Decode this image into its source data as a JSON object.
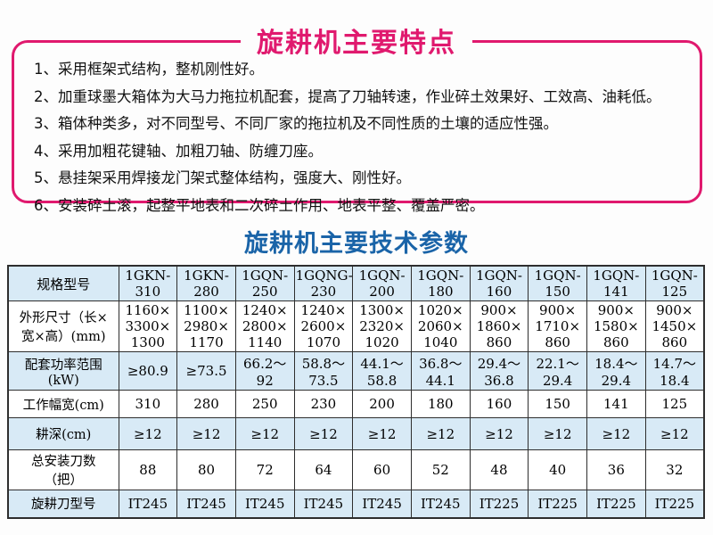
{
  "colors": {
    "accent_pink": "#e0196e",
    "accent_blue": "#1a64a8",
    "cell_blue": "#d8eaf6",
    "table_border": "#2e2e2e"
  },
  "features": {
    "title": "旋耕机主要特点",
    "items": [
      "1、采用框架式结构，整机刚性好。",
      "2、加重球墨大箱体为大马力拖拉机配套，提高了刀轴转速，作业碎土效果好、工效高、油耗低。",
      "3、箱体种类多，对不同型号、不同厂家的拖拉机及不同性质的土壤的适应性强。",
      "4、采用加粗花键轴、加粗刀轴、防缠刀座。",
      "5、悬挂架采用焊接龙门架式整体结构，强度大、刚性好。",
      "6、安装碎土滚，起整平地表和二次碎土作用、地表平整、覆盖严密。"
    ]
  },
  "specs": {
    "title": "旋耕机主要技术参数",
    "table": {
      "header": [
        "规格型号",
        "1GKN-310",
        "1GKN-280",
        "1GQN-250",
        "1GQNG-230",
        "1GQN-200",
        "1GQN-180",
        "1GQN-160",
        "1GQN-150",
        "1GQN-141",
        "1GQN-125"
      ],
      "rows": [
        {
          "label": [
            "外形尺寸（长×",
            "宽×高）(mm)"
          ],
          "values": [
            [
              "1160×",
              "3300×",
              "1300"
            ],
            [
              "1100×",
              "2980×",
              "1170"
            ],
            [
              "1240×",
              "2800×",
              "1140"
            ],
            [
              "1240×",
              "2600×",
              "1070"
            ],
            [
              "1300×",
              "2320×",
              "1020"
            ],
            [
              "1020×",
              "2060×",
              "1040"
            ],
            [
              "900×",
              "1860×",
              "860"
            ],
            [
              "900×",
              "1710×",
              "860"
            ],
            [
              "900×",
              "1580×",
              "860"
            ],
            [
              "900×",
              "1450×",
              "860"
            ]
          ]
        },
        {
          "label": [
            "配套功率范围",
            "(kW)"
          ],
          "values": [
            "≥80.9",
            "≥73.5",
            "66.2～92",
            [
              "58.8～",
              "73.5"
            ],
            [
              "44.1～",
              "58.8"
            ],
            [
              "36.8～",
              "44.1"
            ],
            [
              "29.4～",
              "36.8"
            ],
            [
              "22.1～",
              "29.4"
            ],
            [
              "18.4～",
              "29.4"
            ],
            [
              "14.7～",
              "18.4"
            ]
          ]
        },
        {
          "label": "工作幅宽(cm)",
          "values": [
            "310",
            "280",
            "250",
            "230",
            "200",
            "180",
            "160",
            "150",
            "141",
            "125"
          ]
        },
        {
          "label": "耕深(cm)",
          "values": [
            "≥12",
            "≥12",
            "≥12",
            "≥12",
            "≥12",
            "≥12",
            "≥12",
            "≥12",
            "≥12",
            "≥12"
          ]
        },
        {
          "label": [
            "总安装刀数",
            "（把）"
          ],
          "values": [
            "88",
            "80",
            "72",
            "64",
            "60",
            "52",
            "48",
            "40",
            "36",
            "32"
          ]
        },
        {
          "label": "旋耕刀型号",
          "values": [
            "IT245",
            "IT245",
            "IT245",
            "IT245",
            "IT245",
            "IT245",
            "IT225",
            "IT225",
            "IT225",
            "IT225"
          ]
        }
      ]
    }
  }
}
